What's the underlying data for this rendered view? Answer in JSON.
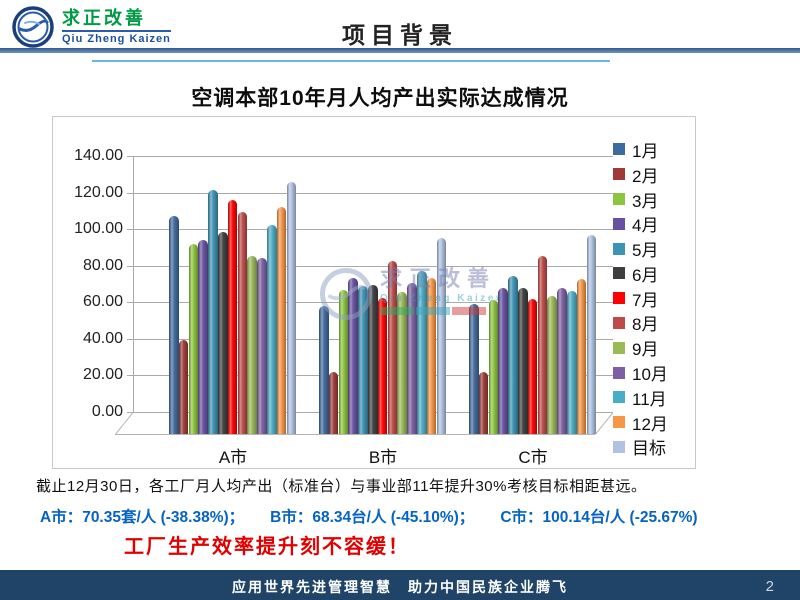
{
  "header": {
    "logo_title": "求正改善",
    "logo_subtitle": "Qiu Zheng Kaizen",
    "page_title": "项目背景"
  },
  "chart_data": {
    "type": "bar",
    "style": "3d-cylinder",
    "title": "空调本部10年月人均产出实际达成情况",
    "categories": [
      "A市",
      "B市",
      "C市"
    ],
    "series": [
      {
        "name": "1月",
        "color": "#3F6A9E",
        "values": [
          109,
          64,
          65
        ]
      },
      {
        "name": "2月",
        "color": "#9E3B38",
        "values": [
          47,
          31,
          31
        ]
      },
      {
        "name": "3月",
        "color": "#8CC63E",
        "values": [
          95,
          72,
          67
        ]
      },
      {
        "name": "4月",
        "color": "#6951A1",
        "values": [
          97,
          78,
          73
        ]
      },
      {
        "name": "5月",
        "color": "#3D93B4",
        "values": [
          122,
          74,
          79
        ]
      },
      {
        "name": "6月",
        "color": "#3F3F3F",
        "values": [
          101,
          74.5,
          73
        ]
      },
      {
        "name": "7月",
        "color": "#FF0000",
        "values": [
          117,
          68,
          67.5
        ]
      },
      {
        "name": "8月",
        "color": "#BE4B48",
        "values": [
          111,
          86.5,
          89
        ]
      },
      {
        "name": "9月",
        "color": "#9ABA58",
        "values": [
          89,
          71,
          69
        ]
      },
      {
        "name": "10月",
        "color": "#7D60A4",
        "values": [
          88,
          75.5,
          73
        ]
      },
      {
        "name": "11月",
        "color": "#4BACC6",
        "values": [
          104.5,
          81.5,
          71.5
        ]
      },
      {
        "name": "12月",
        "color": "#F79646",
        "values": [
          113.5,
          78,
          77.5
        ]
      },
      {
        "name": "目标",
        "color": "#AFC2E2",
        "values": [
          126,
          98,
          99.5
        ]
      }
    ],
    "ylim": [
      0,
      140
    ],
    "ytick_step": 20,
    "ytick_labels": [
      "140.00",
      "120.00",
      "100.00",
      "80.00",
      "60.00",
      "40.00",
      "20.00",
      "0.00"
    ],
    "legend_position": "right",
    "grid": true,
    "xlabel": "",
    "ylabel": ""
  },
  "watermark": {
    "title": "求正改善",
    "subtitle": "Qiu Zheng Kaizen",
    "tag_colors": [
      "#2fae62",
      "#3aa7c0",
      "#d23b3b"
    ]
  },
  "notes": {
    "main": "截止12月30日，各工厂月人均产出（标准台）与事业部11年提升30%考核目标相距甚远。",
    "stats": [
      "A市：70.35套/人 (-38.38%)；",
      "B市：68.34台/人 (-45.10%)；",
      "C市：100.14台/人 (-25.67%)"
    ],
    "warning": "工厂生产效率提升刻不容缓！"
  },
  "footer": {
    "slogan": "应用世界先进管理智慧　助力中国民族企业腾飞",
    "page_number": "2"
  },
  "colors": {
    "header_rule_dark": "#33598C",
    "header_rule_light": "#66B9D9",
    "stats_blue": "#0563C1",
    "warning_red": "#E00000",
    "footer_bar": "#1F4467"
  }
}
